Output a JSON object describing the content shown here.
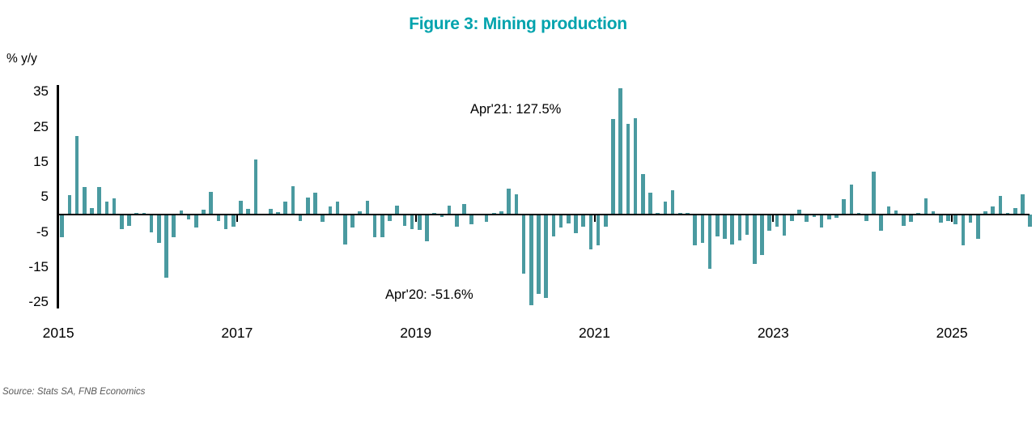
{
  "title": "Figure 3: Mining production",
  "y_axis_label": "% y/y",
  "source": "Source: Stats SA, FNB Economics",
  "annotations": {
    "apr21": "Apr'21: 127.5%",
    "apr20": "Apr'20: -51.6%"
  },
  "colors": {
    "bar": "#4a9aa0",
    "title": "#00a3ad",
    "axis": "#000000",
    "annotation_text": "#000000",
    "source_text": "#595959"
  },
  "chart_data": {
    "type": "bar",
    "title": "Figure 3: Mining production",
    "ylabel": "% y/y",
    "series_name": "Mining production, % y/y",
    "frequency": "monthly",
    "start_month": "2015-01",
    "end_month": "2025-11",
    "x_tick_labels": [
      "2015",
      "2017",
      "2019",
      "2021",
      "2023",
      "2025"
    ],
    "y_ticks": [
      35,
      25,
      15,
      5,
      -5,
      -15,
      -25
    ],
    "ylim": [
      -26,
      36
    ],
    "grid": false,
    "legend": false,
    "values": [
      -6.5,
      5.6,
      22.5,
      7.8,
      1.9,
      7.8,
      3.6,
      4.7,
      -4.2,
      -3.3,
      0.4,
      0.4,
      -5.0,
      -8.1,
      -18.1,
      -6.4,
      1.2,
      -1.3,
      -3.8,
      1.4,
      6.4,
      -1.9,
      -4.1,
      -3.5,
      4.0,
      1.7,
      15.8,
      0.1,
      1.7,
      0.6,
      3.6,
      8.1,
      -1.8,
      4.8,
      6.3,
      -2.1,
      2.3,
      3.7,
      -8.5,
      -3.8,
      0.9,
      4.0,
      -6.5,
      -6.4,
      -1.8,
      2.5,
      -3.3,
      -4.2,
      -4.3,
      -7.7,
      0.5,
      -0.8,
      2.5,
      -3.5,
      3.1,
      -2.7,
      -0.3,
      -2.1,
      0.4,
      0.9,
      7.3,
      5.8,
      -16.8,
      -51.6,
      -22.7,
      -23.8,
      -6.2,
      -3.8,
      -2.5,
      -5.4,
      -3.5,
      -10.0,
      -8.8,
      -3.5,
      27.2,
      127.5,
      25.9,
      27.5,
      11.5,
      6.2,
      0.4,
      3.6,
      6.9,
      0.5,
      0.4,
      -8.8,
      -8.1,
      -15.4,
      -6.2,
      -6.9,
      -8.5,
      -7.3,
      -5.8,
      -14.2,
      -11.5,
      -4.6,
      -3.5,
      -5.9,
      -1.9,
      1.3,
      -2.1,
      -0.8,
      -3.8,
      -1.3,
      -1.0,
      4.4,
      8.6,
      0.4,
      -1.8,
      12.3,
      -4.6,
      2.2,
      1.2,
      -3.3,
      -2.1,
      0.4,
      4.6,
      1.0,
      -2.3,
      -1.9,
      -2.8,
      -8.8,
      -2.3,
      -6.9,
      1.0,
      2.3,
      5.2,
      0.4,
      1.9,
      5.8,
      -3.5
    ],
    "clipped_points": [
      {
        "month": "2020-04",
        "value": -51.6
      },
      {
        "month": "2021-04",
        "value": 127.5
      }
    ],
    "annotations": [
      "Apr'21: 127.5%",
      "Apr'20: -51.6%"
    ]
  }
}
